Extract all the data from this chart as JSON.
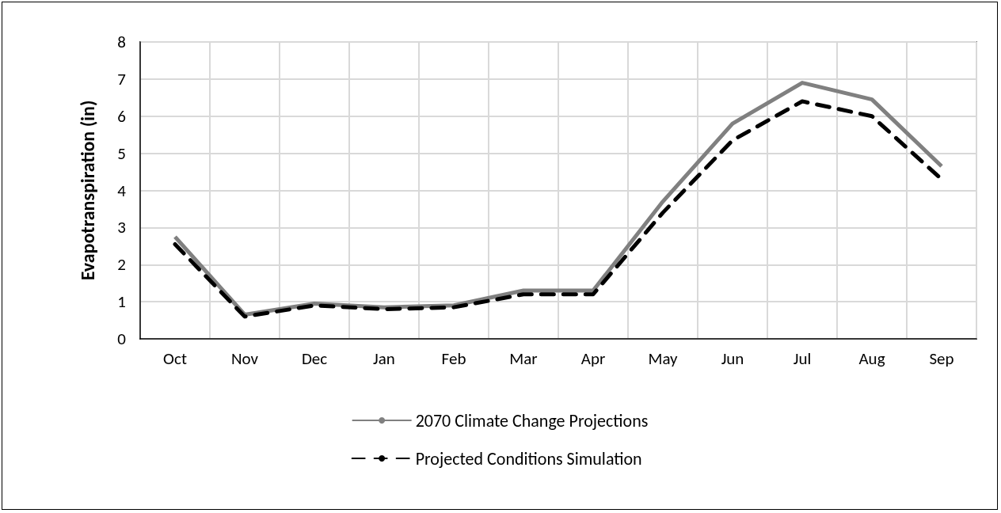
{
  "chart_data": {
    "type": "line",
    "ylabel": "Evapotranspiration (in)",
    "categories": [
      "Oct",
      "Nov",
      "Dec",
      "Jan",
      "Feb",
      "Mar",
      "Apr",
      "May",
      "Jun",
      "Jul",
      "Aug",
      "Sep"
    ],
    "series": [
      {
        "name": "2070 Climate Change Projections",
        "color": "#808080",
        "line_style": "solid",
        "values": [
          2.75,
          0.65,
          0.95,
          0.85,
          0.9,
          1.3,
          1.3,
          3.7,
          5.8,
          6.9,
          6.45,
          4.65
        ]
      },
      {
        "name": "Projected Conditions Simulation",
        "color": "#000000",
        "line_style": "dashed",
        "values": [
          2.55,
          0.6,
          0.9,
          0.8,
          0.85,
          1.2,
          1.2,
          3.4,
          5.35,
          6.4,
          6.0,
          4.3
        ]
      }
    ],
    "ylim": [
      0,
      8
    ],
    "yticks": [
      0,
      1,
      2,
      3,
      4,
      5,
      6,
      7,
      8
    ],
    "grid": true,
    "legend": "bottom",
    "marker": "none"
  }
}
